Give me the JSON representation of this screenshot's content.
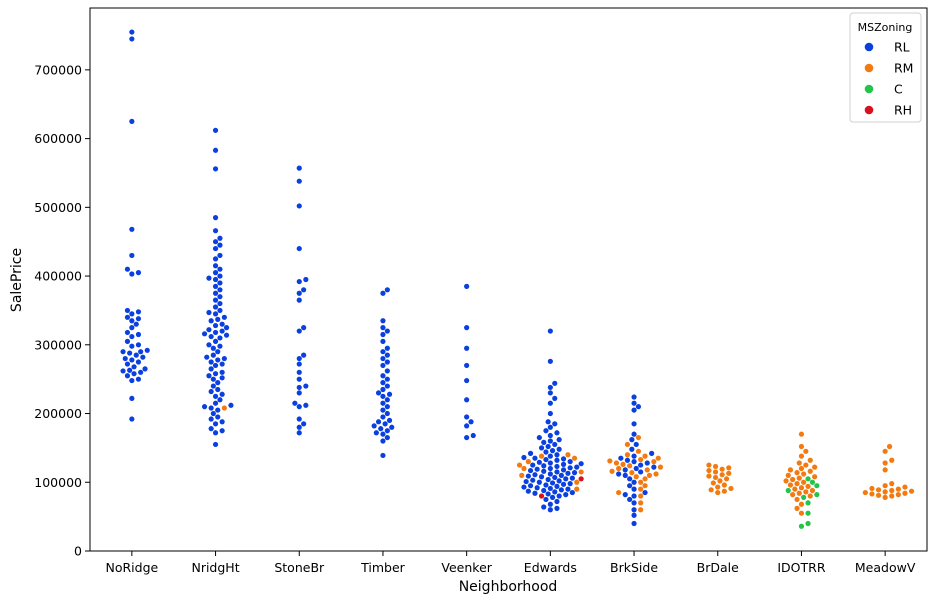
{
  "chart_data": {
    "type": "scatter",
    "subtype": "swarm",
    "xlabel": "Neighborhood",
    "ylabel": "SalePrice",
    "ylim": [
      0,
      790000
    ],
    "yticks": [
      0,
      100000,
      200000,
      300000,
      400000,
      500000,
      600000,
      700000
    ],
    "categories": [
      "NoRidge",
      "NridgHt",
      "StoneBr",
      "Timber",
      "Veenker",
      "Edwards",
      "BrkSide",
      "BrDale",
      "IDOTRR",
      "MeadowV"
    ],
    "legend": {
      "title": "MSZoning",
      "position": "top-right",
      "entries": [
        {
          "label": "RL",
          "color": "#0a3fe0"
        },
        {
          "label": "RM",
          "color": "#f27a10"
        },
        {
          "label": "C",
          "color": "#22c44a"
        },
        {
          "label": "RH",
          "color": "#d9101f"
        }
      ]
    },
    "groups": [
      {
        "category": "NoRidge",
        "RL": [
          755000,
          745000,
          625000,
          468000,
          430000,
          410000,
          403000,
          405000,
          350000,
          348000,
          345000,
          340000,
          338000,
          335000,
          330000,
          325000,
          318000,
          315000,
          312000,
          305000,
          300000,
          298000,
          292000,
          290000,
          290000,
          288000,
          285000,
          282000,
          280000,
          278000,
          275000,
          272000,
          268000,
          265000,
          263000,
          262000,
          260000,
          258000,
          255000,
          250000,
          248000,
          222000,
          192000
        ]
      },
      {
        "category": "NridgHt",
        "RL": [
          612000,
          583000,
          556000,
          485000,
          466000,
          455000,
          450000,
          445000,
          440000,
          430000,
          425000,
          415000,
          410000,
          405000,
          400000,
          397000,
          395000,
          390000,
          385000,
          380000,
          375000,
          370000,
          365000,
          360000,
          355000,
          350000,
          347000,
          345000,
          340000,
          337000,
          335000,
          330000,
          328000,
          325000,
          322000,
          320000,
          318000,
          316000,
          314000,
          312000,
          310000,
          305000,
          300000,
          298000,
          295000,
          290000,
          285000,
          282000,
          280000,
          278000,
          275000,
          272000,
          270000,
          265000,
          260000,
          258000,
          255000,
          252000,
          250000,
          245000,
          240000,
          235000,
          232000,
          228000,
          225000,
          220000,
          215000,
          212000,
          210000,
          208000,
          205000,
          200000,
          195000,
          192000,
          188000,
          185000,
          178000,
          175000,
          172000,
          155000
        ],
        "RM": [
          208000
        ]
      },
      {
        "category": "StoneBr",
        "RL": [
          557000,
          538000,
          502000,
          440000,
          395000,
          392000,
          380000,
          375000,
          365000,
          325000,
          320000,
          285000,
          280000,
          272000,
          260000,
          250000,
          240000,
          238000,
          230000,
          215000,
          212000,
          210000,
          192000,
          185000,
          180000,
          172000
        ]
      },
      {
        "category": "Timber",
        "RL": [
          380000,
          375000,
          335000,
          325000,
          320000,
          315000,
          305000,
          295000,
          290000,
          285000,
          280000,
          275000,
          270000,
          262000,
          255000,
          250000,
          245000,
          240000,
          235000,
          230000,
          228000,
          225000,
          220000,
          215000,
          210000,
          205000,
          200000,
          195000,
          190000,
          188000,
          185000,
          182000,
          180000,
          178000,
          175000,
          172000,
          170000,
          165000,
          160000,
          139000
        ]
      },
      {
        "category": "Veenker",
        "RL": [
          385000,
          325000,
          295000,
          270000,
          248000,
          220000,
          195000,
          188000,
          182000,
          168000,
          165000
        ]
      },
      {
        "category": "Edwards",
        "RL": [
          320000,
          276000,
          244000,
          238000,
          230000,
          222000,
          215000,
          200000,
          188000,
          185000,
          180000,
          175000,
          172000,
          168000,
          165000,
          162000,
          160000,
          158000,
          155000,
          152000,
          150000,
          148000,
          146000,
          144000,
          142000,
          140000,
          138000,
          136000,
          135000,
          134000,
          133000,
          132000,
          130000,
          129000,
          128000,
          127000,
          126000,
          125000,
          124000,
          123000,
          122000,
          121000,
          120000,
          119000,
          118000,
          117000,
          116000,
          115000,
          114000,
          113000,
          112000,
          111000,
          110000,
          109000,
          108000,
          107000,
          106000,
          105000,
          104000,
          103000,
          102000,
          101000,
          100000,
          99000,
          98000,
          97000,
          96000,
          95000,
          94000,
          93000,
          92000,
          91000,
          90000,
          89000,
          88000,
          87000,
          86000,
          85000,
          84000,
          83000,
          82000,
          80000,
          78000,
          75000,
          72000,
          68000,
          64000,
          62000,
          60000
        ],
        "RM": [
          140000,
          138000,
          135000,
          130000,
          125000,
          120000,
          115000,
          110000,
          100000,
          90000
        ],
        "RH": [
          105000,
          80000
        ]
      },
      {
        "category": "BrkSide",
        "RL": [
          224000,
          215000,
          210000,
          205000,
          185000,
          170000,
          162000,
          155000,
          148000,
          142000,
          138000,
          135000,
          132000,
          130000,
          128000,
          125000,
          122000,
          120000,
          118000,
          115000,
          112000,
          110000,
          105000,
          100000,
          95000,
          90000,
          85000,
          82000,
          80000,
          75000,
          70000,
          60000,
          52000,
          40000
        ],
        "RM": [
          165000,
          155000,
          145000,
          140000,
          138000,
          135000,
          133000,
          131000,
          130000,
          128000,
          126000,
          124000,
          122000,
          120000,
          118000,
          116000,
          114000,
          112000,
          110000,
          108000,
          105000,
          100000,
          95000,
          90000,
          85000,
          80000,
          70000,
          60000
        ]
      },
      {
        "category": "BrDale",
        "RM": [
          125000,
          123000,
          121000,
          119000,
          117000,
          115000,
          113000,
          111000,
          109000,
          107000,
          105000,
          102000,
          99000,
          96000,
          93000,
          91000,
          89000,
          87000,
          85000
        ]
      },
      {
        "category": "IDOTRR",
        "RM": [
          170000,
          152000,
          145000,
          138000,
          132000,
          128000,
          125000,
          122000,
          120000,
          118000,
          116000,
          114000,
          112000,
          110000,
          108000,
          106000,
          104000,
          102000,
          100000,
          98000,
          96000,
          94000,
          92000,
          90000,
          88000,
          86000,
          84000,
          82000,
          80000,
          75000,
          68000,
          62000,
          55000
        ],
        "C": [
          105000,
          100000,
          95000,
          88000,
          82000,
          78000,
          70000,
          55000,
          40000,
          36000
        ]
      },
      {
        "category": "MeadowV",
        "RM": [
          152000,
          145000,
          132000,
          128000,
          118000,
          98000,
          95000,
          93000,
          91000,
          90000,
          89000,
          88000,
          87000,
          86000,
          85000,
          84000,
          83000,
          82000,
          81000,
          80000,
          78000
        ]
      }
    ]
  }
}
